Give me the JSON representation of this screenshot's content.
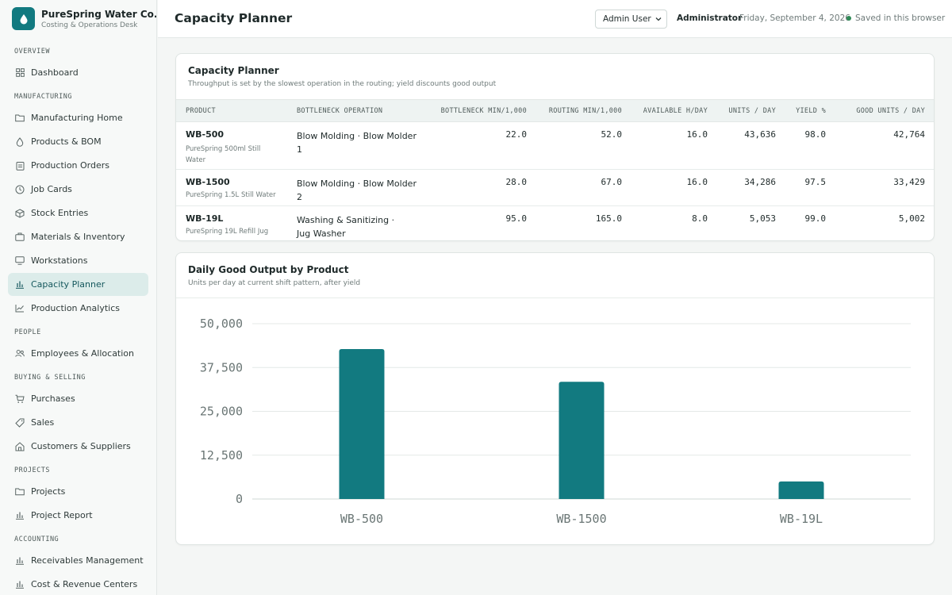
{
  "brand": {
    "name": "PureSpring Water Co.",
    "subtitle": "Costing & Operations Desk"
  },
  "sidebar": {
    "sections": [
      {
        "label": "OVERVIEW",
        "items": [
          {
            "label": "Dashboard",
            "icon": "grid-icon"
          }
        ]
      },
      {
        "label": "MANUFACTURING",
        "items": [
          {
            "label": "Manufacturing Home",
            "icon": "folder-icon"
          },
          {
            "label": "Products & BOM",
            "icon": "drop-icon"
          },
          {
            "label": "Production Orders",
            "icon": "clipboard-icon"
          },
          {
            "label": "Job Cards",
            "icon": "clock-icon"
          },
          {
            "label": "Stock Entries",
            "icon": "box-icon"
          },
          {
            "label": "Materials & Inventory",
            "icon": "briefcase-icon"
          },
          {
            "label": "Workstations",
            "icon": "monitor-icon"
          },
          {
            "label": "Capacity Planner",
            "icon": "bars-icon",
            "active": true
          },
          {
            "label": "Production Analytics",
            "icon": "trend-icon"
          }
        ]
      },
      {
        "label": "PEOPLE",
        "items": [
          {
            "label": "Employees & Allocation",
            "icon": "users-icon"
          }
        ]
      },
      {
        "label": "BUYING & SELLING",
        "items": [
          {
            "label": "Purchases",
            "icon": "cart-icon"
          },
          {
            "label": "Sales",
            "icon": "tag-icon"
          },
          {
            "label": "Customers & Suppliers",
            "icon": "home-icon"
          }
        ]
      },
      {
        "label": "PROJECTS",
        "items": [
          {
            "label": "Projects",
            "icon": "folder-icon"
          },
          {
            "label": "Project Report",
            "icon": "bars-icon"
          }
        ]
      },
      {
        "label": "ACCOUNTING",
        "items": [
          {
            "label": "Receivables Management",
            "icon": "bars-icon"
          },
          {
            "label": "Cost & Revenue Centers",
            "icon": "bars-icon"
          }
        ]
      }
    ]
  },
  "header": {
    "title": "Capacity Planner",
    "user_select": "Admin User",
    "role": "Administrator",
    "date": "Friday, September 4, 2026",
    "saved": "Saved in this browser"
  },
  "planner": {
    "title": "Capacity Planner",
    "subtitle": "Throughput is set by the slowest operation in the routing; yield discounts good output",
    "columns": [
      "PRODUCT",
      "BOTTLENECK OPERATION",
      "BOTTLENECK MIN/1,000",
      "ROUTING MIN/1,000",
      "AVAILABLE H/DAY",
      "UNITS / DAY",
      "YIELD %",
      "GOOD UNITS / DAY"
    ],
    "rows": [
      {
        "code": "WB-500",
        "name": "PureSpring 500ml Still Water",
        "op": "Blow Molding · Blow Molder 1",
        "bottleneck": "22.0",
        "routing": "52.0",
        "hours": "16.0",
        "units": "43,636",
        "yield": "98.0",
        "good": "42,764"
      },
      {
        "code": "WB-1500",
        "name": "PureSpring 1.5L Still Water",
        "op": "Blow Molding · Blow Molder 2",
        "bottleneck": "28.0",
        "routing": "67.0",
        "hours": "16.0",
        "units": "34,286",
        "yield": "97.5",
        "good": "33,429"
      },
      {
        "code": "WB-19L",
        "name": "PureSpring 19L Refill Jug",
        "op": "Washing & Sanitizing · Jug Washer",
        "bottleneck": "95.0",
        "routing": "165.0",
        "hours": "8.0",
        "units": "5,053",
        "yield": "99.0",
        "good": "5,002"
      }
    ]
  },
  "output_chart": {
    "title": "Daily Good Output by Product",
    "subtitle": "Units per day at current shift pattern, after yield"
  },
  "chart_data": {
    "type": "bar",
    "categories": [
      "WB-500",
      "WB-1500",
      "WB-19L"
    ],
    "values": [
      42764,
      33429,
      5002
    ],
    "yticks": [
      "0",
      "12,500",
      "25,000",
      "37,500",
      "50,000"
    ],
    "ylim": [
      0,
      50000
    ],
    "bar_color": "#127a80",
    "grid": true,
    "title": "",
    "xlabel": "",
    "ylabel": ""
  }
}
